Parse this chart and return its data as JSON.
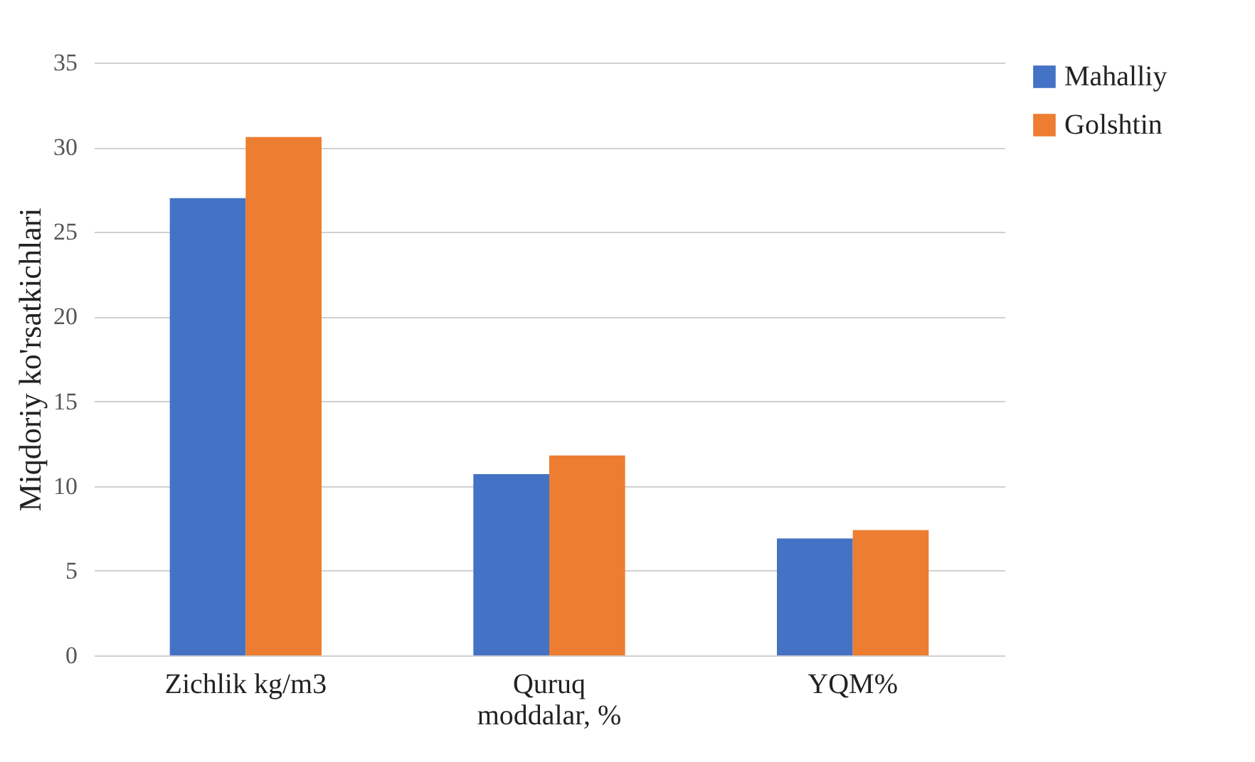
{
  "chart_data": {
    "type": "bar",
    "ylabel": "Miqdoriy ko'rsatkichlari",
    "categories": [
      "Zichlik kg/m3",
      "Quruq moddalar, %",
      "YQM%"
    ],
    "series": [
      {
        "name": "Mahalliy",
        "color": "#4472c4",
        "values": [
          27.0,
          10.7,
          6.9
        ]
      },
      {
        "name": "Golshtin",
        "color": "#ed7d31",
        "values": [
          30.6,
          11.8,
          7.4
        ]
      }
    ],
    "ylim": [
      0,
      35
    ],
    "yticks": [
      0,
      5,
      10,
      15,
      20,
      25,
      30,
      35
    ],
    "grid": "y",
    "legend": "right"
  }
}
